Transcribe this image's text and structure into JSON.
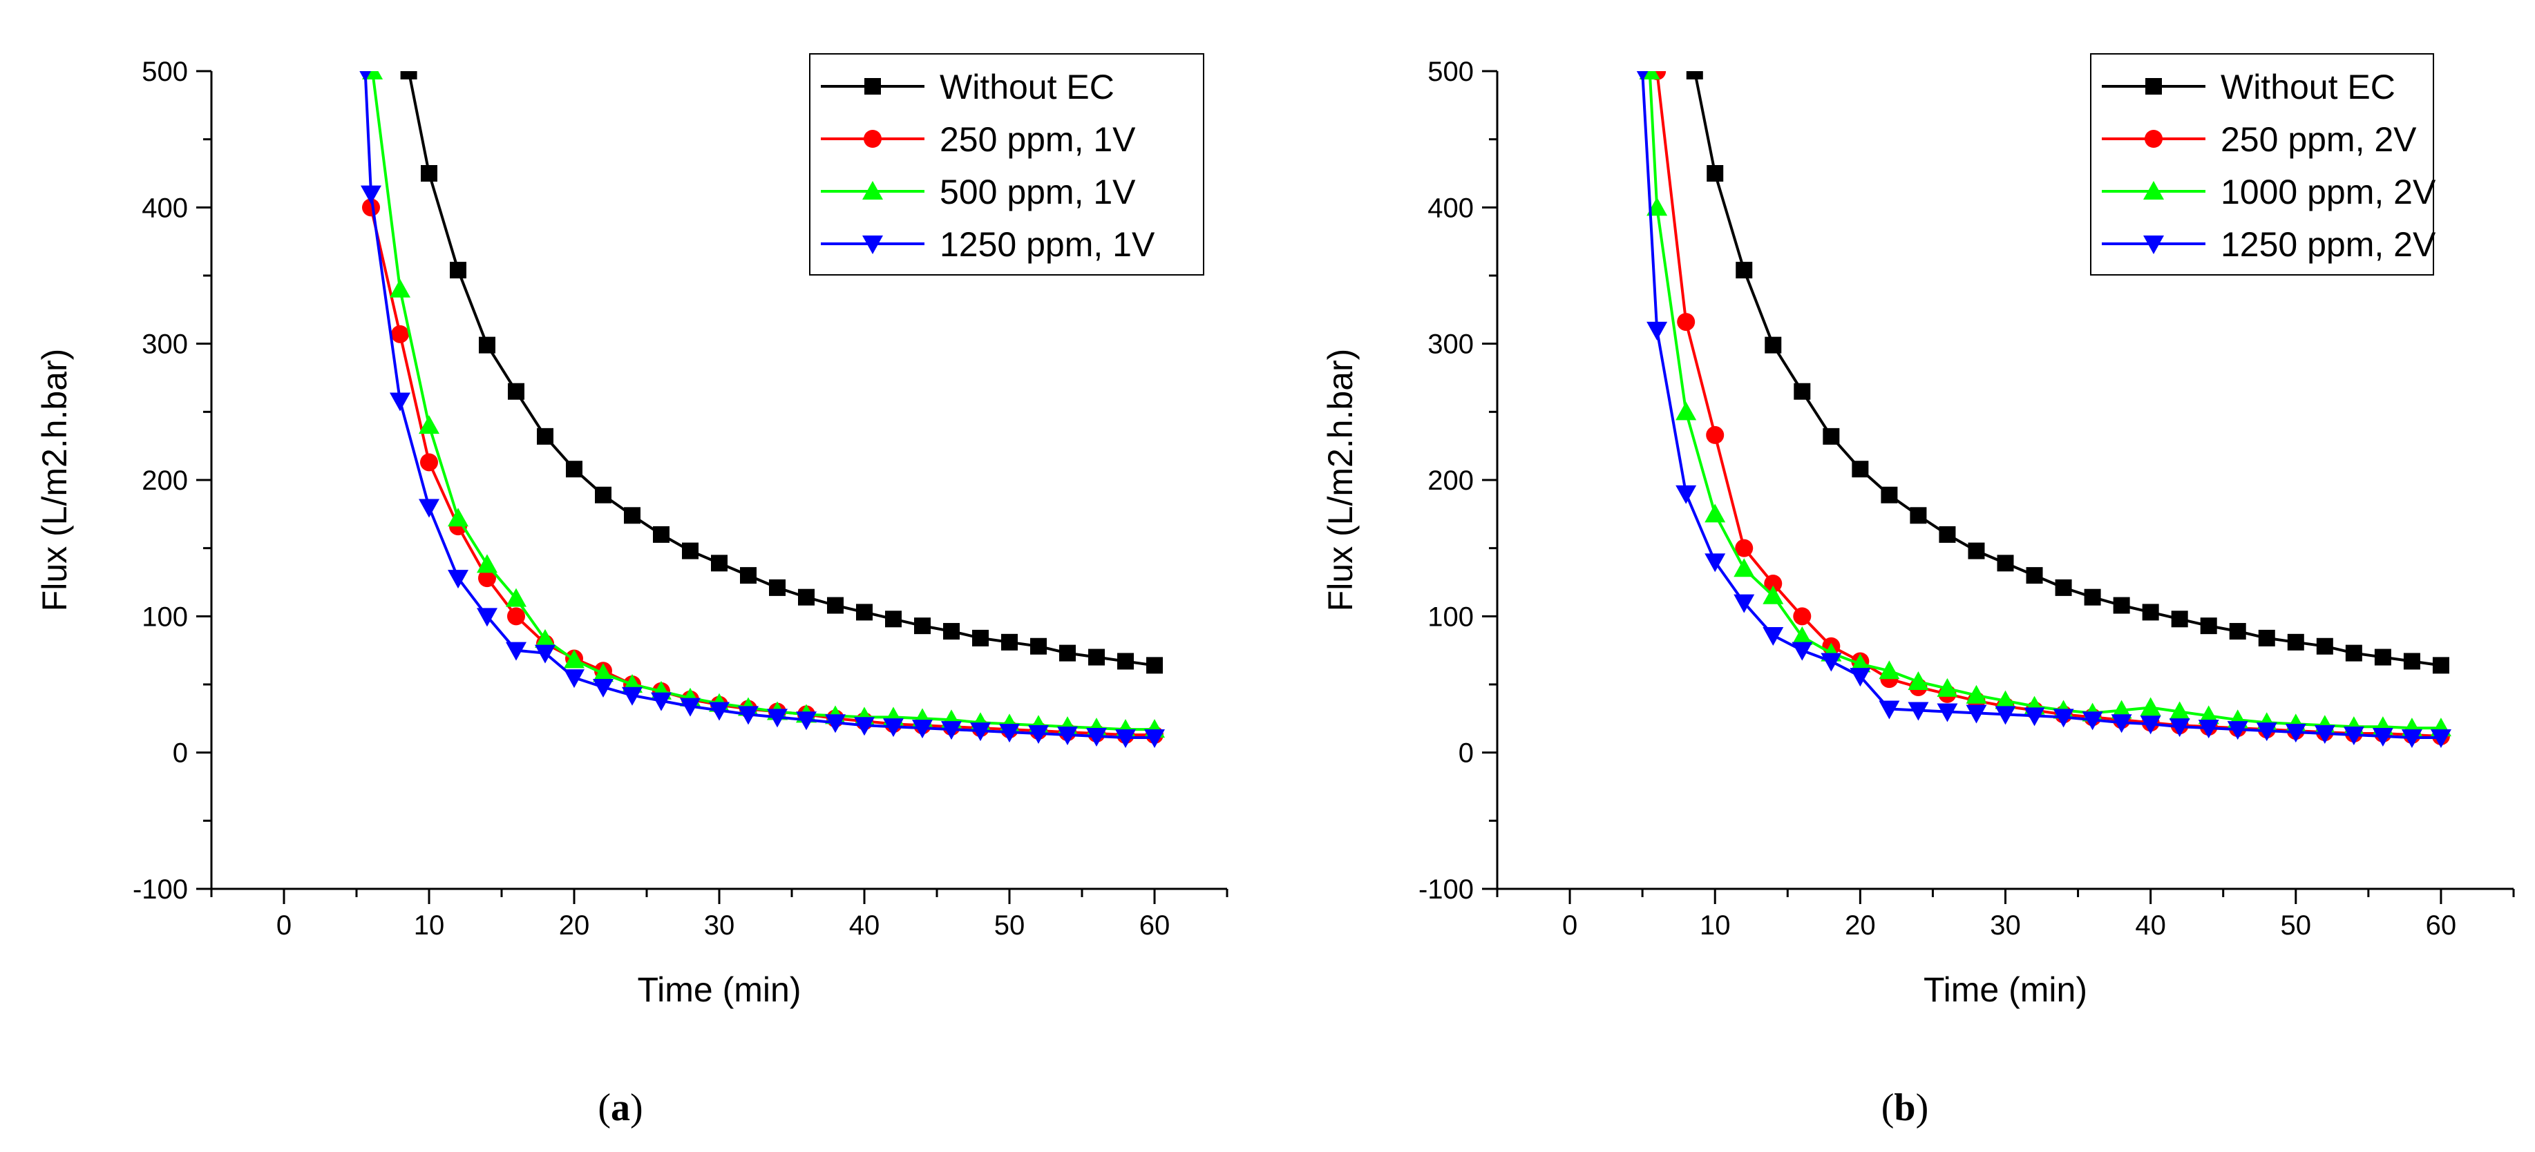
{
  "figure": {
    "captions": [
      {
        "open": "(",
        "letter": "a",
        "close": ")"
      },
      {
        "open": "(",
        "letter": "b",
        "close": ")"
      }
    ]
  },
  "chart_data": [
    {
      "type": "line",
      "panel": "a",
      "xlabel": "Time (min)",
      "ylabel": "Flux (L/m2.h.bar)",
      "xlim": [
        -5,
        65
      ],
      "ylim": [
        -100,
        500
      ],
      "xticks": [
        0,
        10,
        20,
        30,
        40,
        50,
        60
      ],
      "yticks": [
        -100,
        0,
        100,
        200,
        300,
        400,
        500
      ],
      "legend_position": "top-right",
      "series": [
        {
          "name": "Without EC",
          "color": "#000000",
          "marker": "square",
          "x": [
            8.6,
            10,
            12,
            14,
            16,
            18,
            20,
            22,
            24,
            26,
            28,
            30,
            32,
            34,
            36,
            38,
            40,
            42,
            44,
            46,
            48,
            50,
            52,
            54,
            56,
            58,
            60
          ],
          "y": [
            500,
            425,
            354,
            299,
            265,
            232,
            208,
            189,
            174,
            160,
            148,
            139,
            130,
            121,
            114,
            108,
            103,
            98,
            93,
            89,
            84,
            81,
            78,
            73,
            70,
            67,
            64
          ]
        },
        {
          "name": "250 ppm, 1V",
          "color": "#ff0000",
          "marker": "circle",
          "x": [
            6,
            8,
            10,
            12,
            14,
            16,
            18,
            20,
            22,
            24,
            26,
            28,
            30,
            32,
            34,
            36,
            38,
            40,
            42,
            44,
            46,
            48,
            50,
            52,
            54,
            56,
            58,
            60
          ],
          "y": [
            400,
            307,
            213,
            166,
            128,
            100,
            80,
            69,
            60,
            50,
            45,
            39,
            35,
            32,
            30,
            28,
            25,
            23,
            21,
            20,
            19,
            18,
            17,
            16,
            15,
            14,
            13,
            13
          ]
        },
        {
          "name": "500 ppm, 1V",
          "color": "#00ff00",
          "marker": "triangle-up",
          "x": [
            6.1,
            8,
            10,
            12,
            14,
            16,
            18,
            20,
            22,
            24,
            26,
            28,
            30,
            32,
            34,
            36,
            38,
            40,
            42,
            44,
            46,
            48,
            50,
            52,
            54,
            56,
            58,
            60
          ],
          "y": [
            500,
            340,
            240,
            172,
            138,
            113,
            83,
            68,
            58,
            50,
            45,
            40,
            36,
            33,
            30,
            28,
            27,
            26,
            26,
            25,
            24,
            22,
            21,
            20,
            19,
            18,
            17,
            17
          ]
        },
        {
          "name": "1250 ppm, 1V",
          "color": "#0000ff",
          "marker": "triangle-down",
          "x": [
            5.6,
            6,
            8,
            10,
            12,
            14,
            16,
            18,
            20,
            22,
            24,
            26,
            28,
            30,
            32,
            34,
            36,
            38,
            40,
            42,
            44,
            46,
            48,
            50,
            52,
            54,
            56,
            58,
            60
          ],
          "y": [
            500,
            410,
            258,
            180,
            128,
            100,
            75,
            73,
            55,
            48,
            42,
            38,
            34,
            31,
            28,
            26,
            24,
            22,
            20,
            19,
            18,
            17,
            16,
            15,
            14,
            13,
            12,
            11,
            11
          ]
        }
      ]
    },
    {
      "type": "line",
      "panel": "b",
      "xlabel": "Time (min)",
      "ylabel": "Flux (L/m2.h.bar)",
      "xlim": [
        -5,
        65
      ],
      "ylim": [
        -100,
        500
      ],
      "xticks": [
        0,
        10,
        20,
        30,
        40,
        50,
        60
      ],
      "yticks": [
        -100,
        0,
        100,
        200,
        300,
        400,
        500
      ],
      "legend_position": "top-right",
      "series": [
        {
          "name": "Without EC",
          "color": "#000000",
          "marker": "square",
          "x": [
            8.6,
            10,
            12,
            14,
            16,
            18,
            20,
            22,
            24,
            26,
            28,
            30,
            32,
            34,
            36,
            38,
            40,
            42,
            44,
            46,
            48,
            50,
            52,
            54,
            56,
            58,
            60
          ],
          "y": [
            500,
            425,
            354,
            299,
            265,
            232,
            208,
            189,
            174,
            160,
            148,
            139,
            130,
            121,
            114,
            108,
            103,
            98,
            93,
            89,
            84,
            81,
            78,
            73,
            70,
            67,
            64
          ]
        },
        {
          "name": "250 ppm, 2V",
          "color": "#ff0000",
          "marker": "circle",
          "x": [
            6,
            8,
            10,
            12,
            14,
            16,
            18,
            20,
            22,
            24,
            26,
            28,
            30,
            32,
            34,
            36,
            38,
            40,
            42,
            44,
            46,
            48,
            50,
            52,
            54,
            56,
            58,
            60
          ],
          "y": [
            500,
            316,
            233,
            150,
            124,
            100,
            78,
            67,
            54,
            48,
            43,
            38,
            34,
            31,
            28,
            26,
            24,
            22,
            20,
            19,
            18,
            17,
            16,
            15,
            14,
            14,
            13,
            12
          ]
        },
        {
          "name": "1000 ppm, 2V",
          "color": "#00ff00",
          "marker": "triangle-up",
          "x": [
            5.5,
            6,
            8,
            10,
            12,
            14,
            16,
            18,
            20,
            22,
            24,
            26,
            28,
            30,
            32,
            34,
            36,
            38,
            40,
            42,
            44,
            46,
            48,
            50,
            52,
            54,
            56,
            58,
            60
          ],
          "y": [
            500,
            400,
            250,
            175,
            135,
            115,
            85,
            73,
            65,
            60,
            52,
            47,
            42,
            38,
            34,
            31,
            29,
            31,
            33,
            30,
            27,
            24,
            22,
            21,
            20,
            19,
            19,
            18,
            18
          ]
        },
        {
          "name": "1250 ppm, 2V",
          "color": "#0000ff",
          "marker": "triangle-down",
          "x": [
            5,
            6,
            8,
            10,
            12,
            14,
            16,
            18,
            20,
            22,
            24,
            26,
            28,
            30,
            32,
            34,
            36,
            38,
            40,
            42,
            44,
            46,
            48,
            50,
            52,
            54,
            56,
            58,
            60
          ],
          "y": [
            500,
            310,
            190,
            140,
            110,
            86,
            75,
            67,
            56,
            32,
            31,
            30,
            29,
            28,
            27,
            26,
            24,
            22,
            21,
            19,
            18,
            17,
            16,
            15,
            14,
            13,
            12,
            11,
            11
          ]
        }
      ]
    }
  ]
}
